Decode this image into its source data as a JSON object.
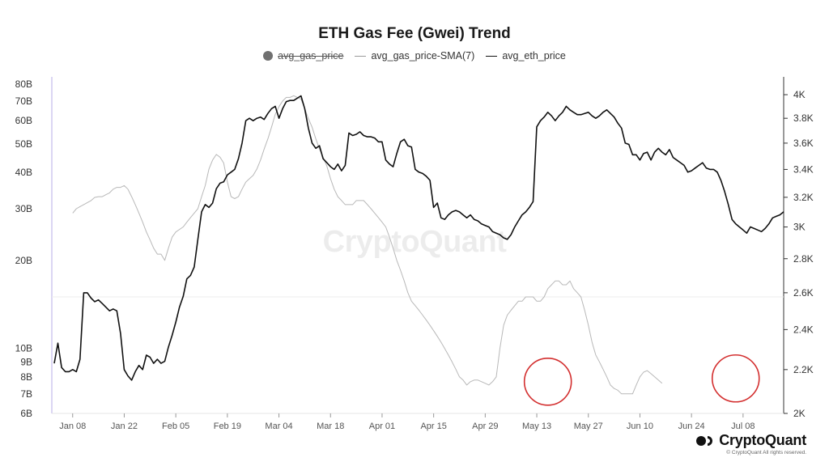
{
  "chart_data": {
    "type": "line",
    "title": "ETH Gas Fee (Gwei) Trend",
    "legend": [
      {
        "name": "avg_gas_price",
        "style": "dot",
        "hidden": true
      },
      {
        "name": "avg_gas_price-SMA(7)",
        "style": "thin-line"
      },
      {
        "name": "avg_eth_price",
        "style": "dark-line"
      }
    ],
    "x_ticks": [
      "Jan 08",
      "Jan 22",
      "Feb 05",
      "Feb 19",
      "Mar 04",
      "Mar 18",
      "Apr 01",
      "Apr 15",
      "Apr 29",
      "May 13",
      "May 27",
      "Jun 10",
      "Jun 24",
      "Jul 08"
    ],
    "left_axis": {
      "scale": "log",
      "ticks": [
        "6B",
        "7B",
        "8B",
        "9B",
        "10B",
        "20B",
        "30B",
        "40B",
        "50B",
        "60B",
        "70B",
        "80B"
      ],
      "tick_values": [
        6,
        7,
        8,
        9,
        10,
        20,
        30,
        40,
        50,
        60,
        70,
        80
      ],
      "range": [
        6,
        82
      ]
    },
    "right_axis": {
      "scale": "log",
      "ticks": [
        "2K",
        "2.2K",
        "2.4K",
        "2.6K",
        "2.8K",
        "3K",
        "3.2K",
        "3.4K",
        "3.6K",
        "3.8K",
        "4K"
      ],
      "tick_values": [
        2000,
        2200,
        2400,
        2600,
        2800,
        3000,
        3200,
        3400,
        3600,
        3800,
        4000
      ],
      "range": [
        2000,
        4100
      ]
    },
    "start_date": "Jan 03",
    "series": [
      {
        "name": "avg_gas_price-SMA(7)",
        "axis": "left",
        "color": "#b8b8b8",
        "x_start": 5,
        "values": [
          29,
          30,
          30.5,
          31,
          31.5,
          32,
          32.8,
          33,
          33,
          33.5,
          34,
          35,
          35.5,
          35.5,
          36,
          35,
          33,
          31,
          29,
          27,
          25,
          23.5,
          22,
          21,
          21,
          20,
          22,
          24,
          25,
          25.5,
          26,
          27,
          28,
          29,
          30,
          33,
          36,
          41,
          44,
          46,
          45,
          43,
          37,
          33,
          32.5,
          33,
          35,
          37,
          38,
          39,
          41,
          44,
          48,
          52,
          57,
          63,
          67,
          70,
          72,
          72,
          73,
          72,
          71,
          66,
          61,
          57,
          52,
          48,
          45,
          42,
          38,
          35,
          33,
          32,
          31,
          31,
          31,
          32,
          32,
          32,
          31,
          30,
          29,
          28,
          27,
          26,
          24,
          22,
          20,
          18.5,
          17,
          15.5,
          14.5,
          14,
          13.5,
          13,
          12.5,
          12,
          11.5,
          11,
          10.5,
          10,
          9.5,
          9,
          8.5,
          8,
          7.8,
          7.5,
          7.7,
          7.8,
          7.8,
          7.7,
          7.6,
          7.5,
          7.7,
          8,
          10,
          12,
          13,
          13.5,
          14,
          14.5,
          14.5,
          15,
          15,
          15,
          14.5,
          14.5,
          15,
          16,
          16.5,
          17,
          17,
          16.5,
          16.5,
          17,
          16,
          15.5,
          15,
          13.5,
          12,
          10.5,
          9.5,
          9,
          8.5,
          8,
          7.5,
          7.3,
          7.2,
          7,
          7,
          7,
          7,
          7.5,
          8,
          8.3,
          8.4,
          8.2,
          8,
          7.8,
          7.6
        ]
      },
      {
        "name": "avg_eth_price",
        "axis": "right",
        "color": "#111111",
        "x_start": 0,
        "values": [
          2230,
          2330,
          2210,
          2190,
          2190,
          2200,
          2190,
          2250,
          2600,
          2600,
          2570,
          2550,
          2560,
          2540,
          2520,
          2500,
          2510,
          2500,
          2380,
          2200,
          2170,
          2150,
          2190,
          2220,
          2200,
          2270,
          2260,
          2230,
          2250,
          2230,
          2240,
          2310,
          2370,
          2440,
          2520,
          2580,
          2680,
          2700,
          2750,
          2920,
          3100,
          3150,
          3130,
          3160,
          3260,
          3300,
          3310,
          3360,
          3380,
          3400,
          3480,
          3600,
          3780,
          3800,
          3780,
          3800,
          3810,
          3790,
          3840,
          3880,
          3900,
          3800,
          3880,
          3940,
          3950,
          3950,
          3970,
          3990,
          3880,
          3720,
          3600,
          3560,
          3580,
          3480,
          3450,
          3420,
          3400,
          3440,
          3390,
          3430,
          3680,
          3660,
          3670,
          3690,
          3660,
          3650,
          3650,
          3640,
          3610,
          3610,
          3470,
          3440,
          3420,
          3520,
          3610,
          3630,
          3580,
          3570,
          3400,
          3380,
          3370,
          3350,
          3320,
          3130,
          3160,
          3060,
          3050,
          3080,
          3100,
          3110,
          3100,
          3080,
          3060,
          3080,
          3050,
          3040,
          3020,
          3010,
          3000,
          2970,
          2960,
          2950,
          2930,
          2920,
          2950,
          3000,
          3040,
          3080,
          3100,
          3130,
          3170,
          3730,
          3780,
          3810,
          3850,
          3820,
          3780,
          3820,
          3850,
          3900,
          3870,
          3850,
          3830,
          3830,
          3840,
          3850,
          3820,
          3800,
          3820,
          3850,
          3870,
          3840,
          3810,
          3760,
          3720,
          3600,
          3590,
          3510,
          3510,
          3470,
          3520,
          3530,
          3470,
          3530,
          3560,
          3530,
          3510,
          3550,
          3490,
          3470,
          3450,
          3430,
          3380,
          3390,
          3410,
          3430,
          3450,
          3410,
          3400,
          3400,
          3380,
          3320,
          3240,
          3150,
          3050,
          3020,
          3000,
          2980,
          2960,
          3000,
          2990,
          2980,
          2970,
          2990,
          3020,
          3060,
          3070,
          3080,
          3100
        ]
      }
    ],
    "annotations": [
      {
        "type": "circle",
        "color": "#d32f2f",
        "date": "May 16",
        "value": 7.7
      },
      {
        "type": "circle",
        "color": "#d32f2f",
        "date": "Jul 06",
        "value": 7.9
      }
    ],
    "grid": "horizontal-reference-at-15B",
    "watermark": "CryptoQuant"
  },
  "branding": {
    "name": "CryptoQuant",
    "copyright": "© CryptoQuant All rights reserved."
  }
}
